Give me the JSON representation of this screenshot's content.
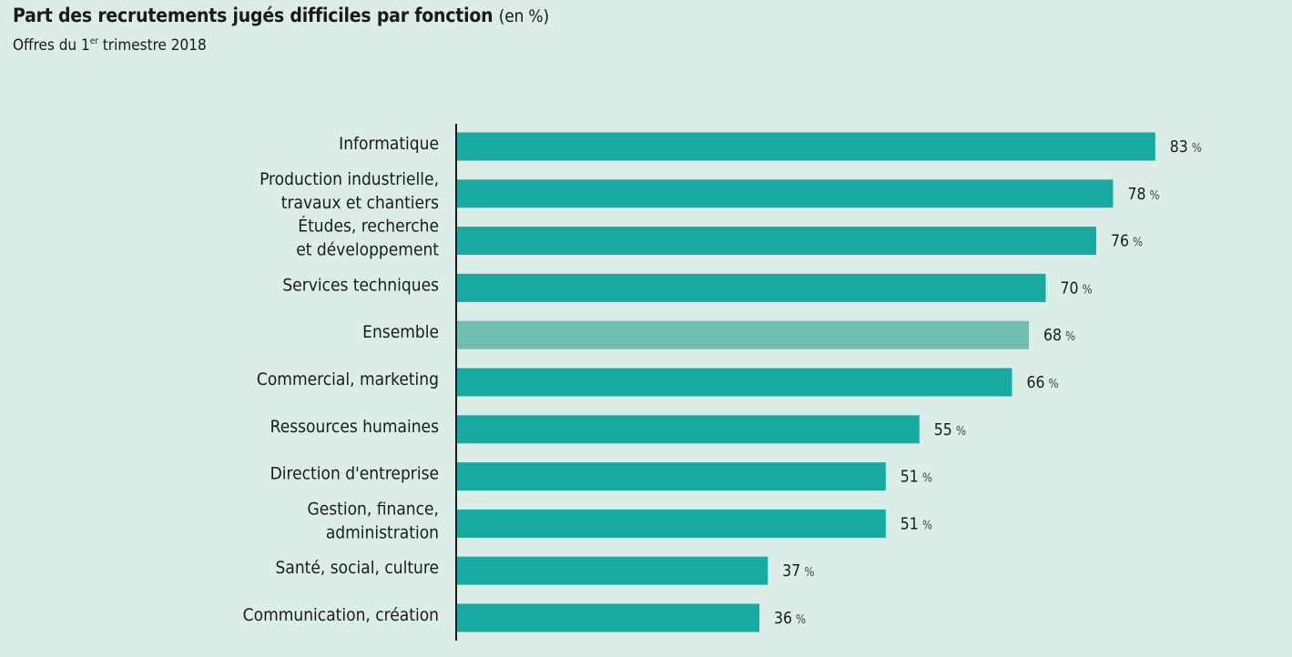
{
  "header": {
    "title": "Part des recrutements jugés difficiles par fonction",
    "title_unit": "(en %)",
    "subtitle_pre": "Offres du 1",
    "subtitle_sup": "er",
    "subtitle_post": " trimestre 2018"
  },
  "colors": {
    "background": "#dcece7",
    "bar": "#18aaa0",
    "bar_highlight": "#6fbfb3",
    "axis": "#1a1a1a"
  },
  "chart_data": {
    "type": "bar",
    "orientation": "horizontal",
    "categories": [
      [
        "Informatique"
      ],
      [
        "Production industrielle,",
        "travaux et chantiers"
      ],
      [
        "Études, recherche",
        "et développement"
      ],
      [
        "Services techniques"
      ],
      [
        "Ensemble"
      ],
      [
        "Commercial, marketing"
      ],
      [
        "Ressources humaines"
      ],
      [
        "Direction d'entreprise"
      ],
      [
        "Gestion, finance,",
        "administration"
      ],
      [
        "Santé, social, culture"
      ],
      [
        "Communication, création"
      ]
    ],
    "values": [
      83,
      78,
      76,
      70,
      68,
      66,
      55,
      51,
      51,
      37,
      36
    ],
    "value_labels": [
      "83",
      "78",
      "76",
      "70",
      "68",
      "66",
      "55",
      "51",
      "51",
      "37",
      "36"
    ],
    "value_suffix": "%",
    "highlight": [
      4
    ],
    "xlim": [
      0,
      100
    ],
    "grid": false,
    "legend": "none"
  }
}
